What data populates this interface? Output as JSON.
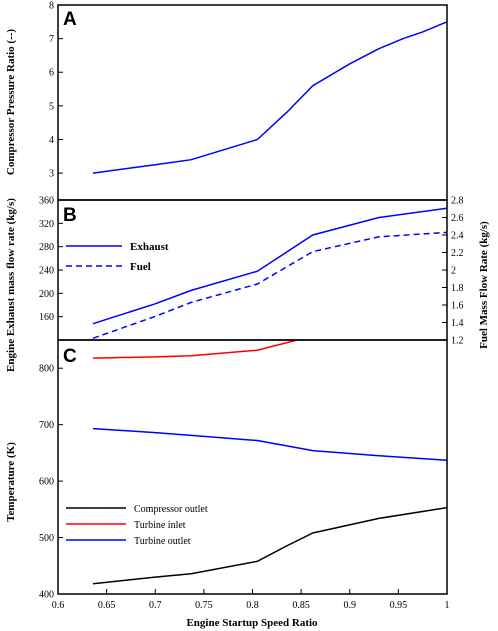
{
  "chart_data": [
    {
      "panel_label": "A",
      "type": "line",
      "ylabel": "Compressor Pressure Ratio (--)",
      "xlim": [
        0.6,
        1.0
      ],
      "ylim": [
        2.2,
        8
      ],
      "yticks": [
        "3",
        "4",
        "5",
        "6",
        "7",
        "8"
      ],
      "series": [
        {
          "color": "#0000ff",
          "dash": "solid",
          "x": [
            0.636,
            0.7,
            0.737,
            0.805,
            0.835,
            0.862,
            0.9,
            0.93,
            0.955,
            0.975,
            1.0
          ],
          "y": [
            3.0,
            3.25,
            3.4,
            4.0,
            4.8,
            5.6,
            6.25,
            6.7,
            7.0,
            7.2,
            7.5
          ]
        }
      ]
    },
    {
      "panel_label": "B",
      "type": "line",
      "ylabel": "Engine Exhaust mass flow rate (kg/s)",
      "y2label": "Fuel Mass Flow Rate (kg/s)",
      "xlim": [
        0.6,
        1.0
      ],
      "ylim": [
        120,
        360
      ],
      "y2lim": [
        1.2,
        2.8
      ],
      "yticks": [
        "160",
        "200",
        "240",
        "280",
        "320",
        "360"
      ],
      "y2ticks": [
        "1.2",
        "1.4",
        "1.6",
        "1.8",
        "2",
        "2.2",
        "2.4",
        "2.6",
        "2.8"
      ],
      "legend_position": "upper-left",
      "series": [
        {
          "name": "Exhaust",
          "axis": "left",
          "color": "#0000ff",
          "dash": "solid",
          "x": [
            0.636,
            0.7,
            0.737,
            0.805,
            0.862,
            0.93,
            1.0
          ],
          "y": [
            148,
            182,
            205,
            238,
            300,
            330,
            346
          ]
        },
        {
          "name": "Fuel",
          "axis": "right",
          "color": "#0000ff",
          "dash": "dashed",
          "x": [
            0.636,
            0.7,
            0.737,
            0.805,
            0.862,
            0.93,
            1.0
          ],
          "y": [
            1.22,
            1.47,
            1.63,
            1.84,
            2.21,
            2.38,
            2.43
          ]
        }
      ]
    },
    {
      "panel_label": "C",
      "type": "line",
      "ylabel": "Temperature (K)",
      "xlabel": "Engine Startup Speed Ratio",
      "xlim": [
        0.6,
        1.0
      ],
      "ylim": [
        400,
        850
      ],
      "yticks": [
        "400",
        "500",
        "600",
        "700",
        "800"
      ],
      "xticks": [
        "0.6",
        "0.65",
        "0.7",
        "0.75",
        "0.8",
        "0.85",
        "0.9",
        "0.95",
        "1"
      ],
      "legend_position": "lower-left",
      "series": [
        {
          "name": "Compressor outlet",
          "color": "#000000",
          "dash": "solid",
          "x": [
            0.636,
            0.7,
            0.737,
            0.805,
            0.835,
            0.862,
            0.93,
            1.0
          ],
          "y": [
            418,
            430,
            436,
            458,
            485,
            508,
            534,
            553
          ]
        },
        {
          "name": "Turbine inlet",
          "color": "#ff0000",
          "dash": "solid",
          "x": [
            0.636,
            0.7,
            0.737,
            0.805,
            0.862,
            0.93,
            1.0
          ],
          "y": [
            818,
            820,
            822,
            832,
            857,
            870,
            880
          ]
        },
        {
          "name": "Turbine outlet",
          "color": "#0000ff",
          "dash": "solid",
          "x": [
            0.636,
            0.7,
            0.737,
            0.805,
            0.862,
            0.93,
            1.0
          ],
          "y": [
            693,
            686,
            681,
            672,
            654,
            645,
            637
          ]
        }
      ]
    }
  ]
}
